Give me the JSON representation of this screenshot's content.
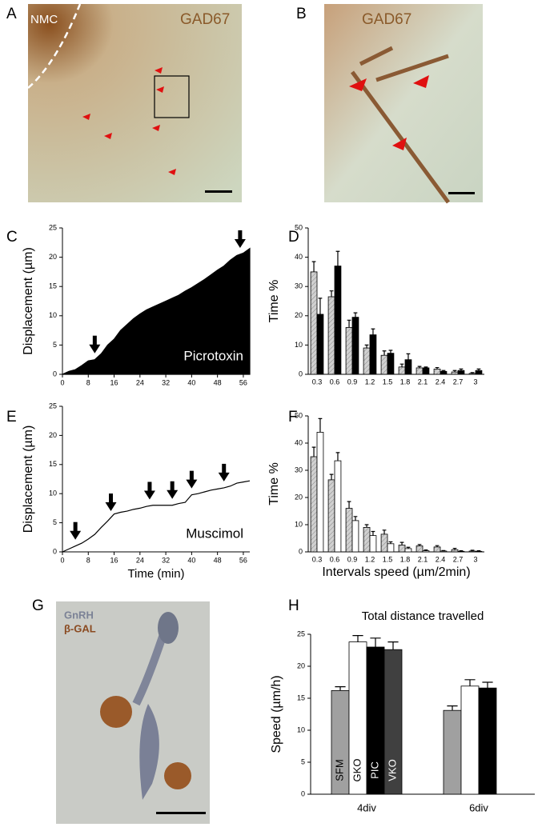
{
  "panels": {
    "letters": [
      "A",
      "B",
      "C",
      "D",
      "E",
      "F",
      "G",
      "H"
    ],
    "a_labels": [
      "NMC",
      "GAD67"
    ],
    "b_label": "GAD67",
    "g_labels": [
      "GnRH",
      "β-GAL"
    ]
  },
  "chart_data": [
    {
      "type": "area",
      "ylabel": "Displacement (µm)",
      "annotation": "Picrotoxin",
      "color": "#000000",
      "x": [
        0,
        2,
        4,
        6,
        8,
        10,
        12,
        14,
        16,
        18,
        20,
        22,
        24,
        26,
        28,
        30,
        32,
        34,
        36,
        38,
        40,
        42,
        44,
        46,
        48,
        50,
        52,
        54,
        56,
        58
      ],
      "values": [
        0,
        0.5,
        0.8,
        1.5,
        2.3,
        2.5,
        3.5,
        5,
        6,
        7.5,
        8.5,
        9.5,
        10.3,
        11,
        11.5,
        12,
        12.5,
        13,
        13.5,
        14.2,
        14.8,
        15.5,
        16.2,
        17,
        17.8,
        18.5,
        19.5,
        20.3,
        20.7,
        21.5
      ],
      "arrows_x": [
        10,
        55
      ],
      "xlim": [
        0,
        58
      ],
      "xticks": [
        0,
        8,
        16,
        24,
        32,
        40,
        48,
        56
      ],
      "ylim": [
        0,
        25
      ],
      "yticks": [
        0,
        5,
        10,
        15,
        20,
        25
      ]
    },
    {
      "type": "bar",
      "ylabel": "Time %",
      "categories": [
        "0.3",
        "0.6",
        "0.9",
        "1.2",
        "1.5",
        "1.8",
        "2.1",
        "2.4",
        "2.7",
        "3"
      ],
      "series": [
        {
          "color": "#c8c8c8",
          "hatch": true,
          "values": [
            35,
            26.5,
            16,
            9,
            6.5,
            2.5,
            2.2,
            1.8,
            0.8,
            0.3
          ],
          "errors": [
            3.5,
            2,
            2.5,
            1,
            1.5,
            1,
            0.5,
            0.5,
            0.5,
            0.3
          ]
        },
        {
          "color": "#000000",
          "values": [
            20.5,
            37,
            19.5,
            13.5,
            7.2,
            5,
            2.2,
            1,
            1.3,
            1.3
          ],
          "errors": [
            5.5,
            5,
            1.5,
            2,
            1,
            2,
            0.3,
            0.3,
            0.5,
            0.5
          ]
        }
      ],
      "ylim": [
        0,
        50
      ],
      "yticks": [
        0,
        10,
        20,
        30,
        40,
        50
      ]
    },
    {
      "type": "line",
      "ylabel": "Displacement (µm)",
      "xlabel": "Time (min)",
      "annotation": "Muscimol",
      "color": "#000000",
      "x": [
        0,
        2,
        4,
        6,
        8,
        10,
        12,
        14,
        16,
        18,
        20,
        22,
        24,
        26,
        28,
        30,
        32,
        34,
        36,
        38,
        40,
        42,
        44,
        46,
        48,
        50,
        52,
        54,
        56,
        58
      ],
      "values": [
        0,
        0.5,
        1,
        1.5,
        2.2,
        3,
        4.2,
        5.3,
        6.5,
        6.8,
        7,
        7.3,
        7.5,
        7.8,
        8,
        8,
        8,
        8,
        8.3,
        8.5,
        9.8,
        10,
        10.3,
        10.6,
        10.8,
        11,
        11.3,
        11.8,
        12,
        12.2
      ],
      "arrows_x": [
        4,
        15,
        27,
        34,
        40,
        50
      ],
      "xlim": [
        0,
        58
      ],
      "xticks": [
        0,
        8,
        16,
        24,
        32,
        40,
        48,
        56
      ],
      "ylim": [
        0,
        25
      ],
      "yticks": [
        0,
        5,
        10,
        15,
        20,
        25
      ]
    },
    {
      "type": "bar",
      "ylabel": "Time %",
      "xlabel": "Intervals speed (µm/2min)",
      "categories": [
        "0.3",
        "0.6",
        "0.9",
        "1.2",
        "1.5",
        "1.8",
        "2.1",
        "2.4",
        "2.7",
        "3"
      ],
      "series": [
        {
          "color": "#c8c8c8",
          "hatch": true,
          "values": [
            35,
            26.5,
            16,
            9,
            6.5,
            2.5,
            2.2,
            1.8,
            0.8,
            0.3
          ],
          "errors": [
            3.5,
            2,
            2.5,
            1,
            1.5,
            1,
            0.5,
            0.5,
            0.5,
            0.3
          ]
        },
        {
          "color": "#ffffff",
          "values": [
            44,
            33.5,
            11.5,
            6,
            3,
            1.2,
            0.4,
            0.3,
            0.2,
            0.2
          ],
          "errors": [
            5,
            3,
            1.5,
            1.5,
            0.7,
            0.5,
            0.3,
            0.2,
            0.2,
            0.2
          ]
        }
      ],
      "ylim": [
        0,
        50
      ],
      "yticks": [
        0,
        10,
        20,
        30,
        40,
        50
      ]
    },
    {
      "type": "bar",
      "title": "Total distance travelled",
      "ylabel": "Speed (µm/h)",
      "categories": [
        "4div",
        "6div"
      ],
      "series": [
        {
          "name": "SFM",
          "color": "#a0a0a0",
          "values": [
            16.2,
            13.1
          ],
          "errors": [
            0.6,
            0.7
          ]
        },
        {
          "name": "GKO",
          "color": "#ffffff",
          "values": [
            23.8,
            16.9
          ],
          "errors": [
            1,
            1
          ]
        },
        {
          "name": "PIC",
          "color": "#000000",
          "values": [
            23,
            16.6
          ],
          "errors": [
            1.4,
            0.9
          ]
        },
        {
          "name": "VKO",
          "color": "#404040",
          "values": [
            22.6,
            null
          ],
          "errors": [
            1.2,
            null
          ]
        }
      ],
      "ylim": [
        0,
        25
      ],
      "yticks": [
        0,
        5,
        10,
        15,
        20,
        25
      ]
    }
  ]
}
